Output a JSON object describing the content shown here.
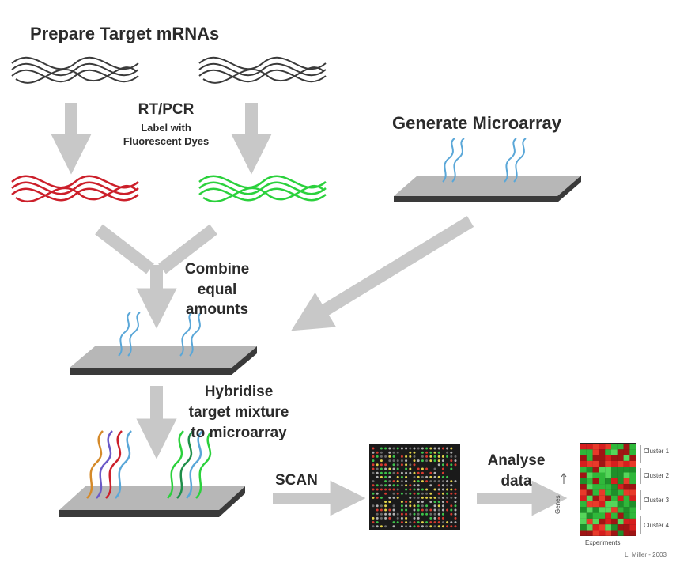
{
  "labels": {
    "prepare": "Prepare Target mRNAs",
    "rtpcr": "RT/PCR",
    "label_with": "Label with",
    "fluorescent": "Fluorescent Dyes",
    "generate": "Generate Microarray",
    "combine": [
      "Combine",
      "equal",
      "amounts"
    ],
    "hybridise": [
      "Hybridise",
      "target mixture",
      "to microarray"
    ],
    "scan": "SCAN",
    "analyse": [
      "Analyse",
      "data"
    ]
  },
  "cluster_labels": [
    "Cluster 1",
    "Cluster 2",
    "Cluster 3",
    "Cluster 4"
  ],
  "heatmap_axis": {
    "x": "Experiments",
    "y": "Genes"
  },
  "credit": "L. Miller - 2003",
  "colors": {
    "arrow": "#c8c8c8",
    "text": "#2b2b2b",
    "red_dye": "#cc1f2a",
    "green_dye": "#2bd13c",
    "probe_blue": "#5aa7d8",
    "slide_top": "#b7b7b7",
    "slide_edge": "#3a3a3a"
  }
}
